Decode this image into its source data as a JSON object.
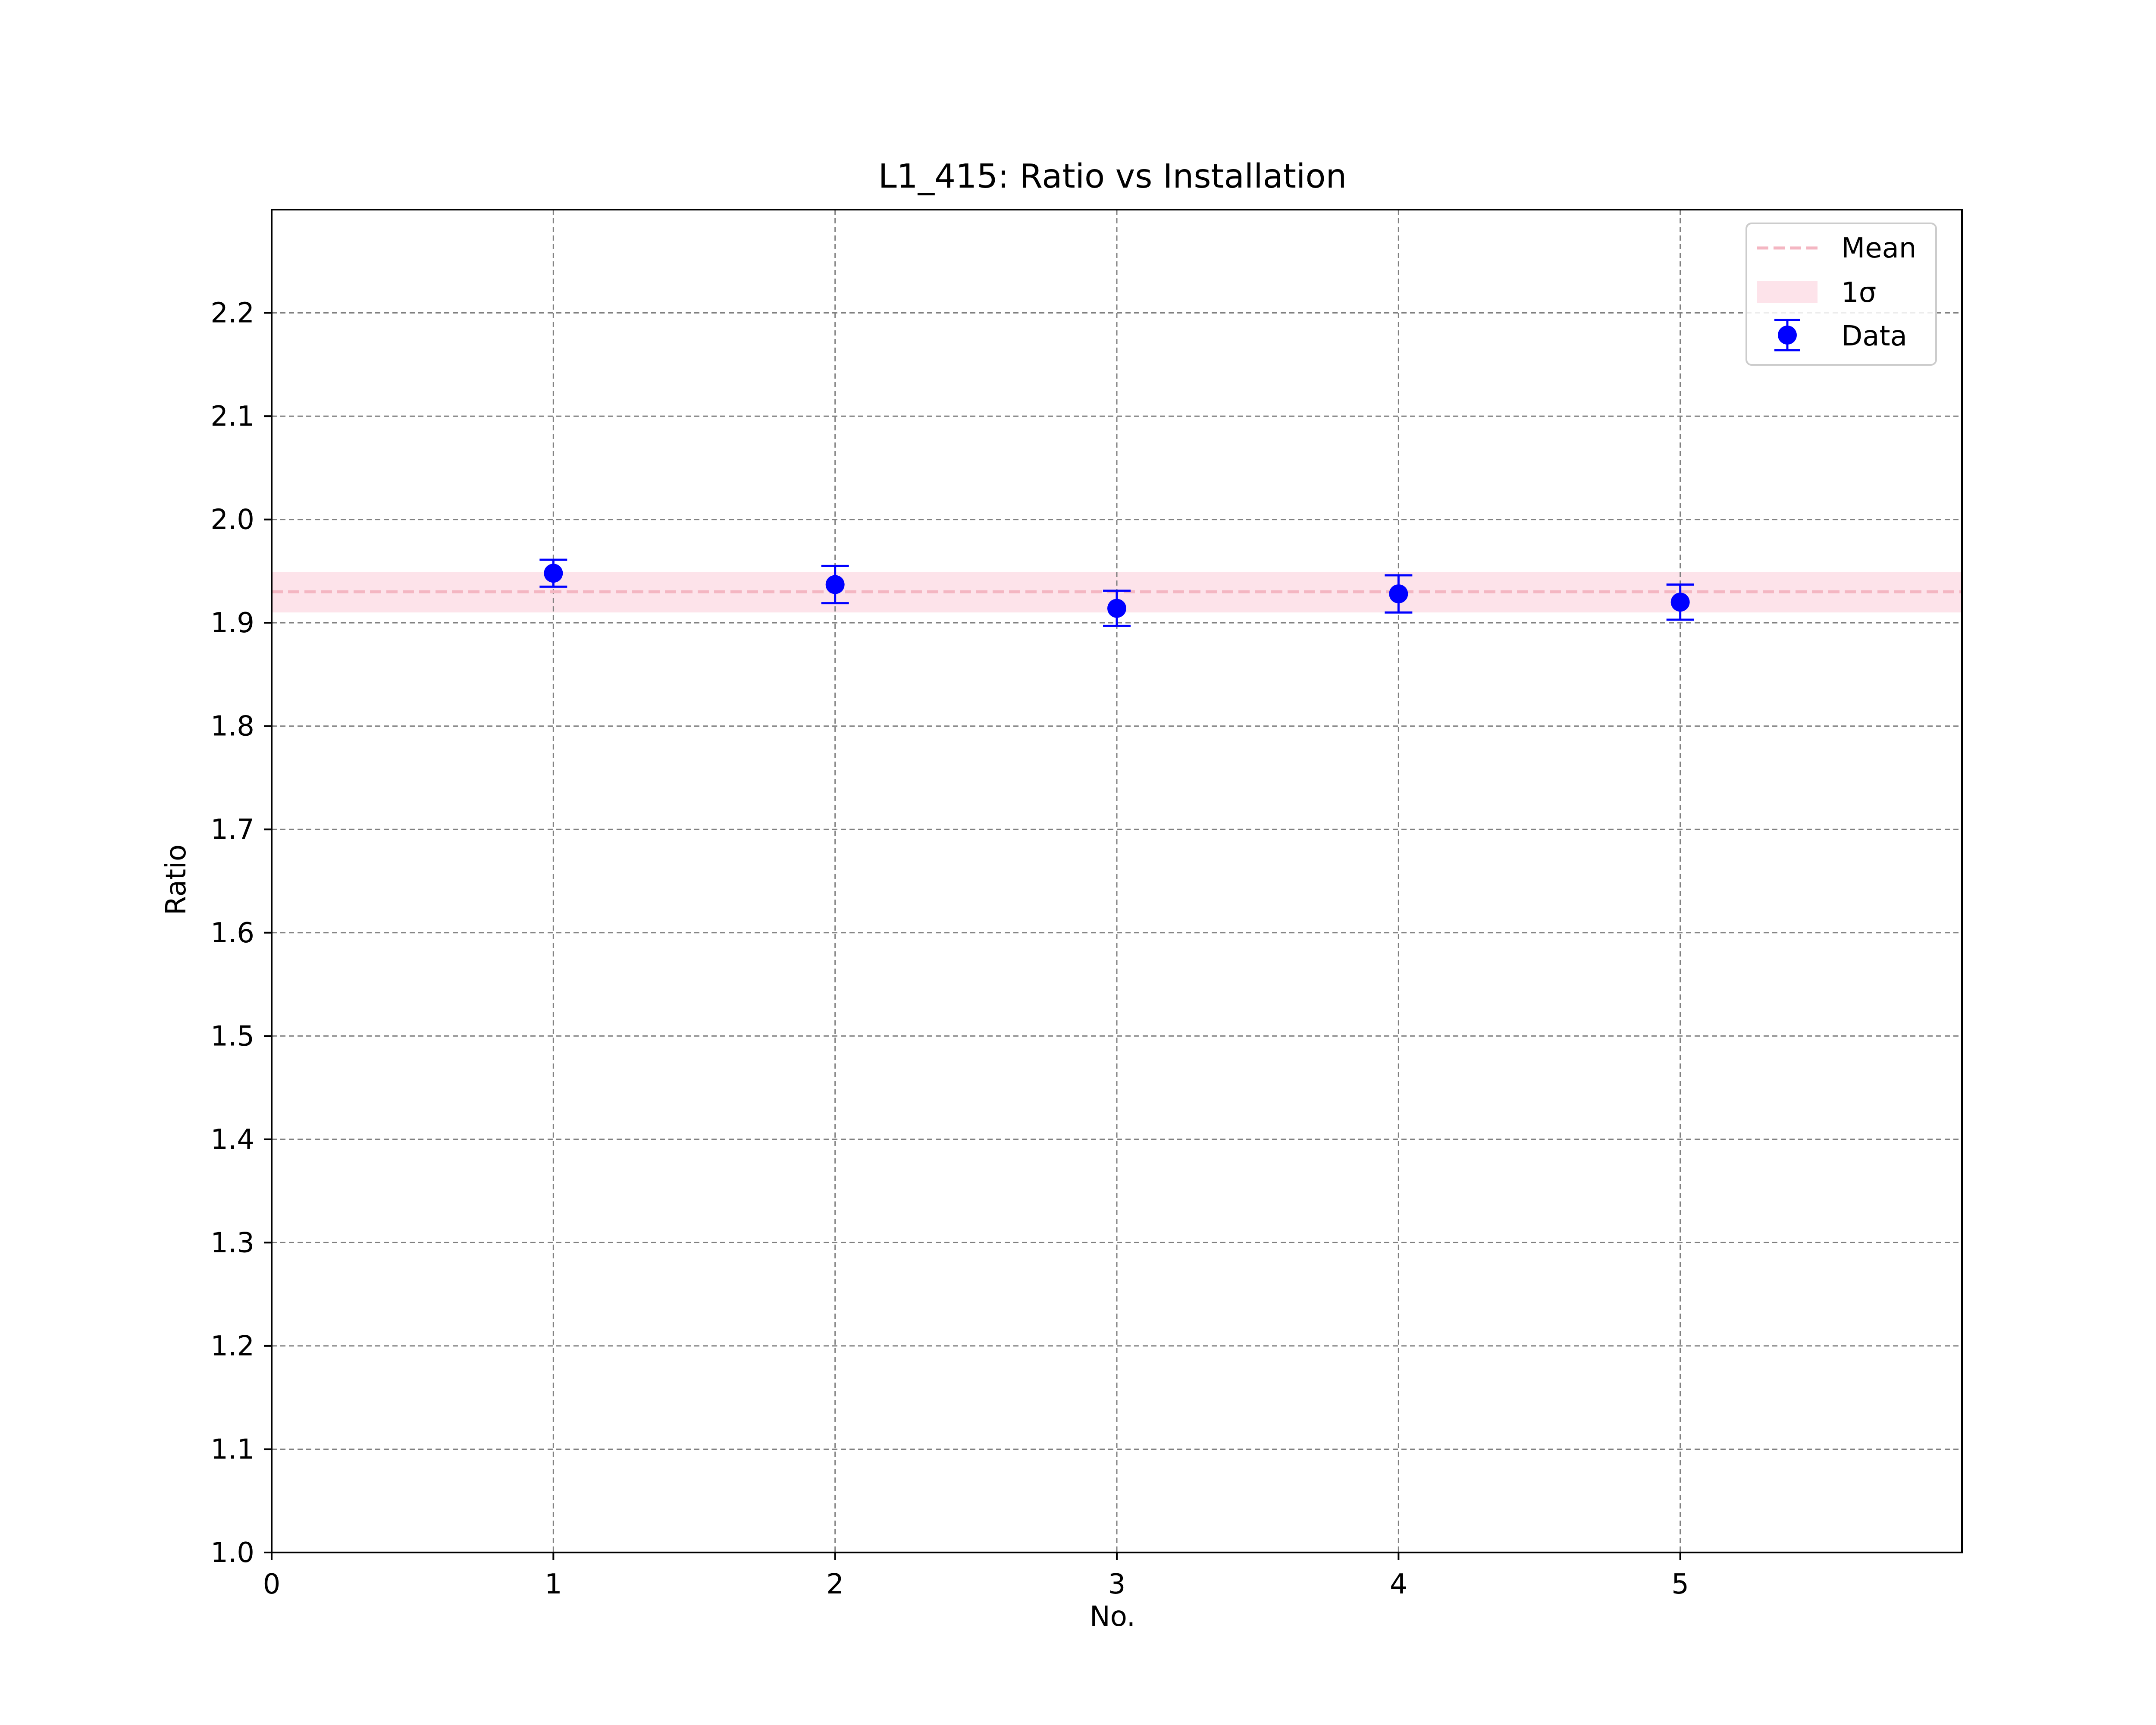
{
  "chart_data": {
    "type": "scatter",
    "title": "L1_415: Ratio vs Installation",
    "xlabel": "No.",
    "ylabel": "Ratio",
    "xlim": [
      0,
      6
    ],
    "ylim": [
      1.0,
      2.3
    ],
    "xticks": [
      0,
      1,
      2,
      3,
      4,
      5
    ],
    "yticks": [
      1.0,
      1.1,
      1.2,
      1.3,
      1.4,
      1.5,
      1.6,
      1.7,
      1.8,
      1.9,
      2.0,
      2.1,
      2.2
    ],
    "grid": true,
    "legend_position": "top-right",
    "legend": [
      "Mean",
      "1σ",
      "Data"
    ],
    "mean": 1.93,
    "sigma_band": [
      1.91,
      1.949
    ],
    "series": [
      {
        "name": "Data",
        "x": [
          1,
          2,
          3,
          4,
          5
        ],
        "y": [
          1.948,
          1.937,
          1.914,
          1.928,
          1.92
        ],
        "yerr": [
          0.013,
          0.018,
          0.017,
          0.018,
          0.017
        ]
      }
    ],
    "colors": {
      "data": "#0000ff",
      "mean": "#f4b6c2",
      "band": "#fde3ea",
      "grid": "#808080"
    }
  }
}
